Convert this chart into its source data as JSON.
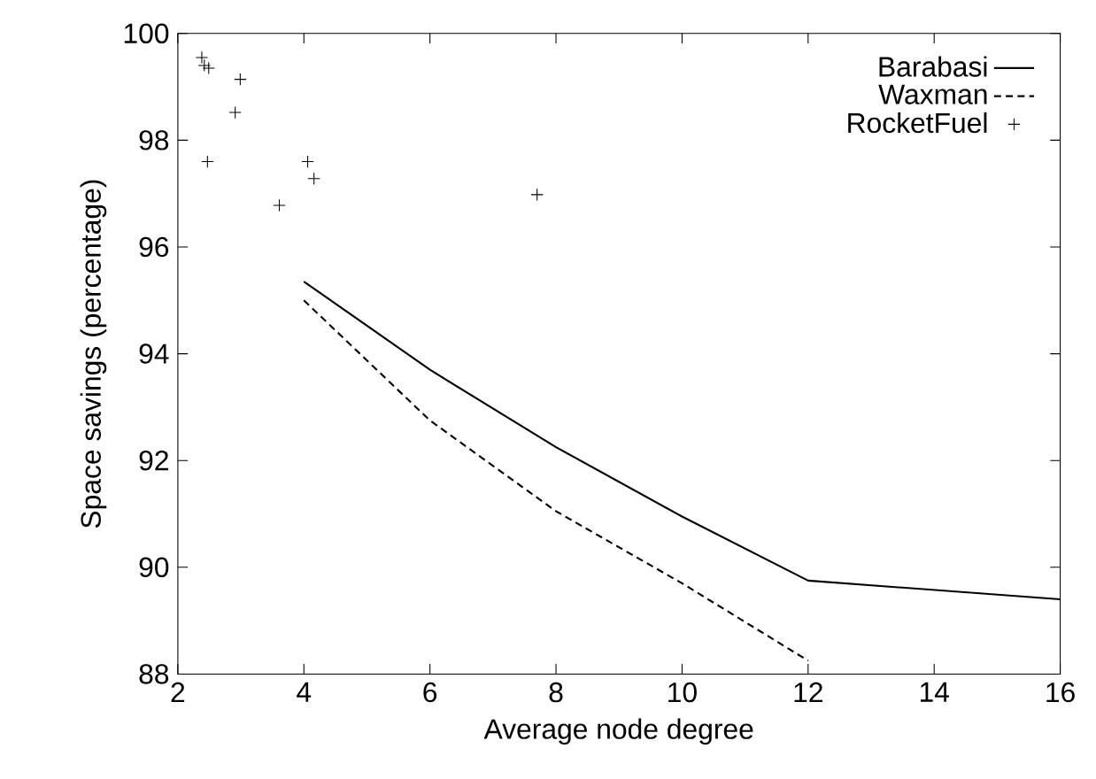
{
  "chart_data": {
    "type": "line",
    "xlabel": "Average node degree",
    "ylabel": "Space savings (percentage)",
    "xlim": [
      2,
      16
    ],
    "ylim": [
      88,
      100
    ],
    "xticks": [
      2,
      4,
      6,
      8,
      10,
      12,
      14,
      16
    ],
    "yticks": [
      88,
      90,
      92,
      94,
      96,
      98,
      100
    ],
    "legend": "top right",
    "grid": false,
    "series": [
      {
        "name": "Barabasi",
        "line_style": "solid",
        "color": "#000000",
        "x": [
          4,
          6,
          8,
          10,
          12,
          16
        ],
        "values": [
          95.35,
          93.7,
          92.25,
          90.95,
          89.75,
          89.4
        ]
      },
      {
        "name": "Waxman",
        "line_style": "dashed",
        "color": "#000000",
        "x": [
          4,
          6,
          8,
          10,
          12
        ],
        "values": [
          95.0,
          92.75,
          91.05,
          89.7,
          88.25
        ]
      },
      {
        "name": "RocketFuel",
        "type": "scatter",
        "marker": "cross",
        "color": "#000000",
        "x": [
          2.38,
          2.42,
          2.49,
          2.99,
          2.91,
          2.47,
          4.06,
          4.16,
          3.61,
          7.7
        ],
        "values": [
          99.55,
          99.4,
          99.35,
          99.14,
          98.52,
          97.6,
          97.6,
          97.28,
          96.78,
          96.98
        ]
      }
    ]
  }
}
